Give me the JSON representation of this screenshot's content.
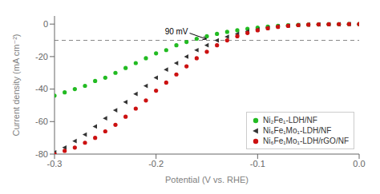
{
  "chart_data": {
    "type": "scatter",
    "xlabel": "Potential (V vs. RHE)",
    "ylabel": "Current density (mA cm⁻²)",
    "xlim": [
      -0.3,
      0.0
    ],
    "ylim": [
      -80,
      5
    ],
    "xticks": [
      -0.3,
      -0.2,
      -0.1,
      {
        "value": 0.0,
        "label": "0.0"
      }
    ],
    "yticks": [
      0,
      -20,
      -40,
      -60,
      -80
    ],
    "grid": false,
    "legend": "lower right",
    "series": [
      {
        "name": "Ni₂Fe₁-LDH/NF",
        "color": "#22bb22",
        "marker": "circle",
        "x": [
          -0.3,
          -0.29,
          -0.28,
          -0.27,
          -0.26,
          -0.25,
          -0.24,
          -0.23,
          -0.22,
          -0.21,
          -0.2,
          -0.19,
          -0.18,
          -0.17,
          -0.16,
          -0.15,
          -0.14,
          -0.13,
          -0.12,
          -0.11,
          -0.1,
          -0.09,
          -0.08,
          -0.07,
          -0.06,
          -0.05,
          -0.04,
          -0.03,
          -0.02,
          -0.01,
          0.0
        ],
        "values": [
          -44,
          -42,
          -40,
          -38,
          -35,
          -33,
          -30,
          -27,
          -24,
          -21,
          -18,
          -16,
          -13,
          -11,
          -9,
          -7.5,
          -6,
          -4.8,
          -3.8,
          -2.9,
          -2.2,
          -1.6,
          -1.1,
          -0.75,
          -0.5,
          -0.3,
          -0.18,
          -0.1,
          -0.05,
          -0.02,
          -0.005
        ]
      },
      {
        "name": "Ni₆Fe₁Mo₁-LDH/NF",
        "color": "#333333",
        "marker": "triangle_left",
        "x": [
          -0.3,
          -0.29,
          -0.28,
          -0.27,
          -0.26,
          -0.25,
          -0.24,
          -0.23,
          -0.22,
          -0.21,
          -0.2,
          -0.19,
          -0.18,
          -0.17,
          -0.16,
          -0.15,
          -0.14,
          -0.13,
          -0.12,
          -0.11,
          -0.1,
          -0.09,
          -0.08,
          -0.07,
          -0.06,
          -0.05,
          -0.04,
          -0.03,
          -0.02,
          -0.01,
          0.0
        ],
        "values": [
          -79,
          -76,
          -72,
          -68,
          -63,
          -58,
          -53,
          -48,
          -43,
          -38,
          -33,
          -28,
          -24,
          -20,
          -16,
          -13,
          -10,
          -7.8,
          -6,
          -4.5,
          -3.3,
          -2.3,
          -1.5,
          -1.0,
          -0.6,
          -0.35,
          -0.2,
          -0.1,
          -0.05,
          -0.02,
          -0.005
        ]
      },
      {
        "name": "Ni₆Fe₁Mo₁-LDH/rGO/NF",
        "color": "#cc1111",
        "marker": "circle",
        "x": [
          -0.3,
          -0.29,
          -0.28,
          -0.27,
          -0.26,
          -0.25,
          -0.24,
          -0.23,
          -0.22,
          -0.21,
          -0.2,
          -0.19,
          -0.18,
          -0.17,
          -0.16,
          -0.15,
          -0.14,
          -0.13,
          -0.12,
          -0.11,
          -0.1,
          -0.09,
          -0.08,
          -0.07,
          -0.06,
          -0.05,
          -0.04,
          -0.03,
          -0.02,
          -0.01,
          0.0
        ],
        "values": [
          -80,
          -78,
          -76,
          -73,
          -70,
          -66,
          -62,
          -57,
          -52,
          -47,
          -41,
          -36,
          -31,
          -26,
          -21,
          -17,
          -13,
          -10,
          -7.5,
          -5.5,
          -3.8,
          -2.6,
          -1.7,
          -1.1,
          -0.65,
          -0.38,
          -0.2,
          -0.1,
          -0.04,
          -0.015,
          -0.004
        ]
      }
    ],
    "reference_lines": [
      {
        "y": -10,
        "line_style": "dashed",
        "color": "#888888"
      }
    ],
    "annotations": [
      {
        "text": "90 mV",
        "x": -0.148,
        "y": -10
      }
    ]
  }
}
